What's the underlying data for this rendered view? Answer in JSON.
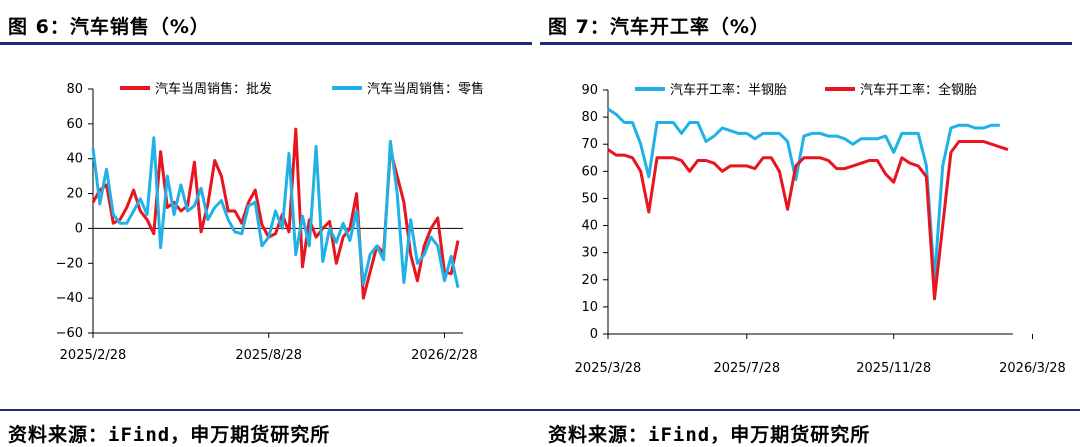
{
  "left": {
    "title": "图 6：汽车销售（%）",
    "source": "资料来源：iFind，申万期货研究所"
  },
  "right": {
    "title": "图 7：汽车开工率（%）",
    "source": "资料来源：iFind，申万期货研究所"
  },
  "colors": {
    "red": "#e8141e",
    "blue": "#1fb2e6",
    "axis": "#000000",
    "rule": "#1c2b78"
  },
  "chart_data": [
    {
      "type": "line",
      "title": "汽车销售（%）",
      "xlabel": "",
      "ylabel": "",
      "ylim": [
        -60,
        80
      ],
      "yticks": [
        -60,
        -40,
        -20,
        0,
        20,
        40,
        60,
        80
      ],
      "x_tick_labels": [
        {
          "label": "2025/2/28",
          "index": 0
        },
        {
          "label": "2025/8/28",
          "index": 26
        },
        {
          "label": "2026/2/28",
          "index": 52
        }
      ],
      "legend_position": "top",
      "series": [
        {
          "name": "汽车当周销售：批发",
          "color": "red",
          "values": [
            15,
            22,
            25,
            3,
            5,
            12,
            22,
            10,
            5,
            -3,
            44,
            12,
            15,
            10,
            13,
            38,
            -2,
            14,
            39,
            30,
            10,
            10,
            3,
            15,
            22,
            2,
            -5,
            -3,
            8,
            -2,
            57,
            -22,
            5,
            -5,
            0,
            4,
            -20,
            -5,
            0,
            20,
            -40,
            -25,
            -10,
            -14,
            45,
            30,
            15,
            -15,
            -30,
            -10,
            0,
            6,
            -25,
            -26,
            -7
          ]
        },
        {
          "name": "汽车当周销售：零售",
          "color": "blue",
          "values": [
            46,
            14,
            34,
            8,
            3,
            3,
            10,
            17,
            8,
            52,
            -11,
            30,
            8,
            25,
            10,
            13,
            23,
            5,
            12,
            16,
            5,
            -2,
            -3,
            13,
            15,
            -10,
            -5,
            10,
            0,
            43,
            -15,
            7,
            -10,
            47,
            -19,
            0,
            -8,
            3,
            -7,
            10,
            -32,
            -15,
            -10,
            -18,
            50,
            20,
            -31,
            5,
            -20,
            -15,
            -5,
            -10,
            -30,
            -16,
            -34
          ]
        }
      ]
    },
    {
      "type": "line",
      "title": "汽车开工率（%）",
      "xlabel": "",
      "ylabel": "",
      "ylim": [
        0,
        90
      ],
      "yticks": [
        0,
        10,
        20,
        30,
        40,
        50,
        60,
        70,
        80,
        90
      ],
      "x_tick_labels": [
        {
          "label": "2025/3/28",
          "index": 0
        },
        {
          "label": "2025/7/28",
          "index": 17
        },
        {
          "label": "2025/11/28",
          "index": 35
        },
        {
          "label": "2026/3/28",
          "index": 52
        }
      ],
      "legend_position": "top",
      "series": [
        {
          "name": "汽车开工率：半钢胎",
          "color": "blue",
          "values": [
            83,
            81,
            78,
            78,
            70,
            58,
            78,
            78,
            78,
            74,
            78,
            78,
            71,
            73,
            76,
            75,
            74,
            74,
            72,
            74,
            74,
            74,
            71,
            57,
            73,
            74,
            74,
            73,
            73,
            72,
            70,
            72,
            72,
            72,
            73,
            67,
            74,
            74,
            74,
            62,
            20,
            62,
            76,
            77,
            77,
            76,
            76,
            77,
            77
          ]
        },
        {
          "name": "汽车开工率：全钢胎",
          "color": "red",
          "values": [
            68,
            66,
            66,
            65,
            60,
            45,
            65,
            65,
            65,
            64,
            60,
            64,
            64,
            63,
            60,
            62,
            62,
            62,
            61,
            65,
            65,
            60,
            46,
            62,
            65,
            65,
            65,
            64,
            61,
            61,
            62,
            63,
            64,
            64,
            59,
            56,
            65,
            63,
            62,
            58,
            13,
            40,
            67,
            71,
            71,
            71,
            71,
            70,
            69,
            68
          ]
        }
      ]
    }
  ]
}
